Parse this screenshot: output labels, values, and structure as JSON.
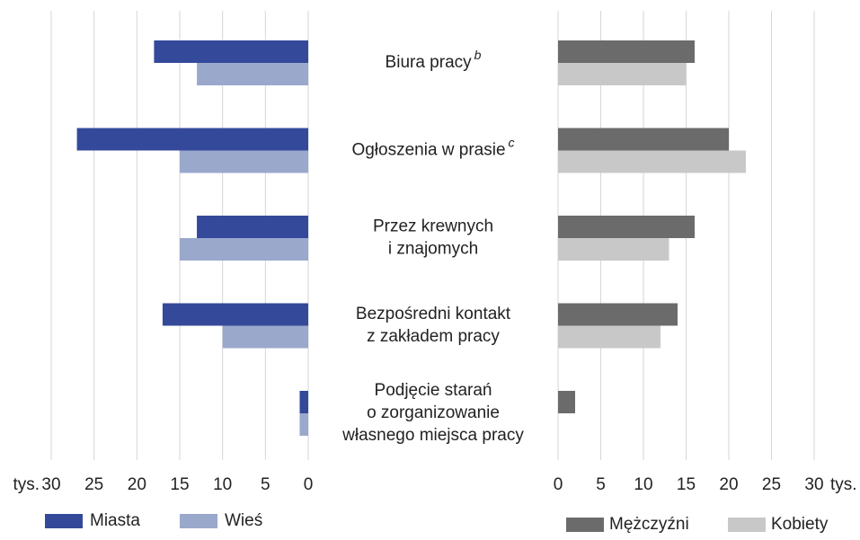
{
  "chart_data": {
    "type": "butterfly",
    "categories": [
      [
        "Biura pracy"
      ],
      [
        "Ogłoszenia w prasie"
      ],
      [
        "Przez krewnych",
        "i znajomych"
      ],
      [
        "Bezpośredni kontakt",
        "z zakładem pracy"
      ],
      [
        "Podjęcie starań",
        "o zorganizowanie",
        "własnego miejsca pracy"
      ]
    ],
    "category_notes": [
      "b",
      "c",
      null,
      null,
      null
    ],
    "xlim": [
      0,
      30
    ],
    "xticks": [
      0,
      5,
      10,
      15,
      20,
      25,
      30
    ],
    "x_unit": "tys.",
    "grid": true,
    "series": [
      {
        "name": "Miasta",
        "color": "#34499a",
        "side": "left",
        "values": [
          18,
          27,
          13,
          17,
          1
        ]
      },
      {
        "name": "Wieś",
        "color": "#9aa8cc",
        "side": "left",
        "values": [
          13,
          15,
          15,
          10,
          1
        ]
      },
      {
        "name": "Mężczyźni",
        "color": "#6b6b6b",
        "side": "right",
        "values": [
          16,
          20,
          16,
          14,
          2
        ]
      },
      {
        "name": "Kobiety",
        "color": "#c8c8c8",
        "side": "right",
        "values": [
          15,
          22,
          13,
          12,
          null
        ]
      }
    ]
  }
}
